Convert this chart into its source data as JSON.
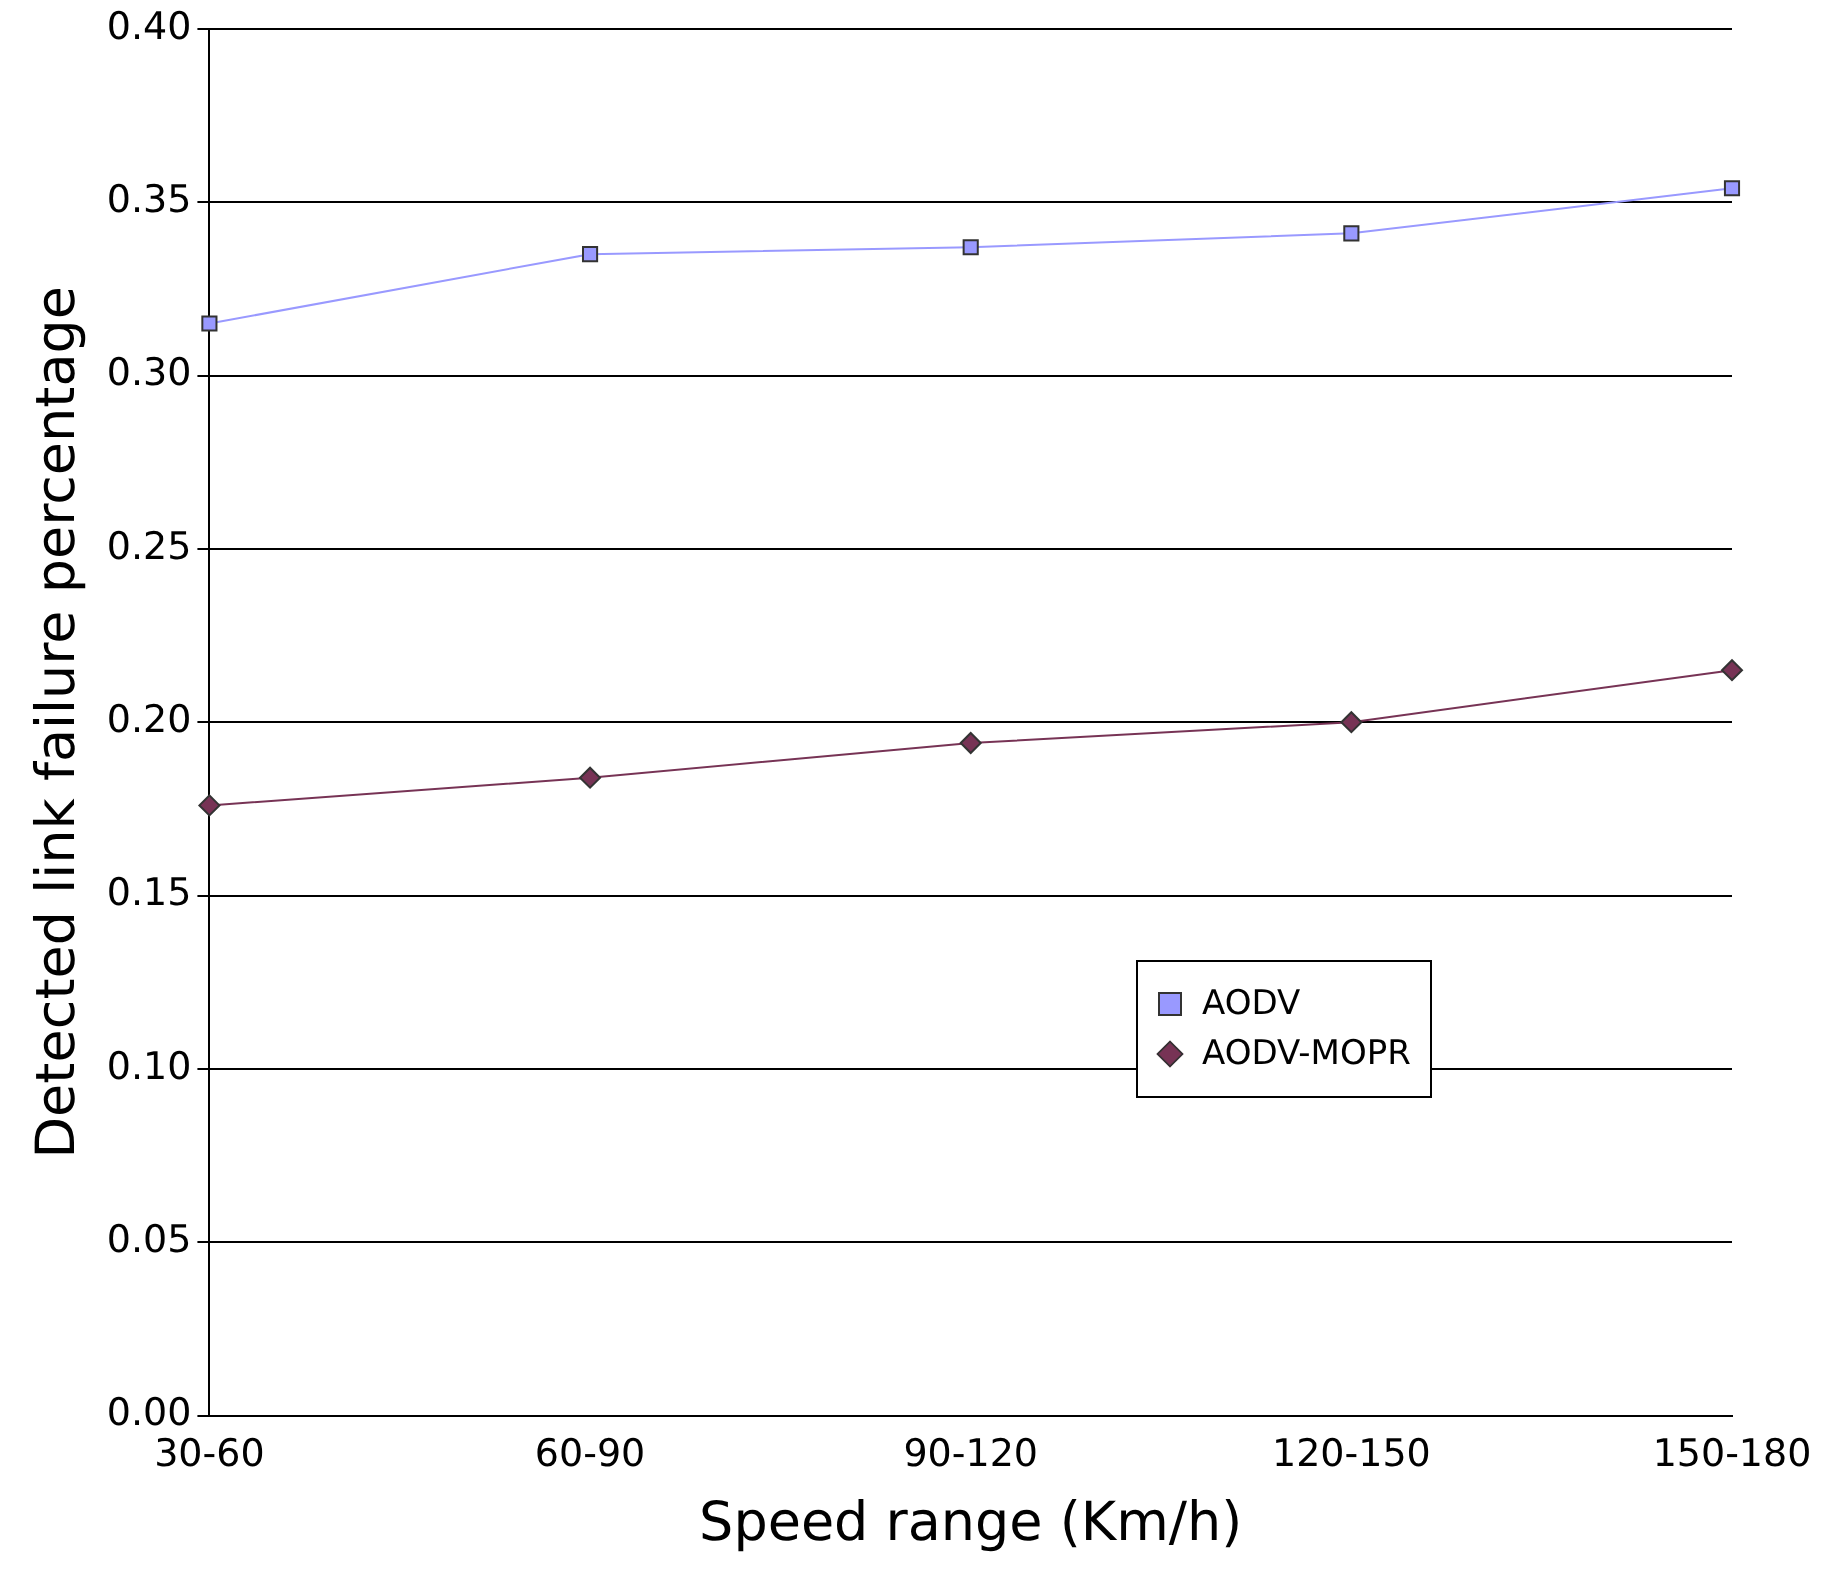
{
  "chart_data": {
    "type": "line",
    "xlabel": "Speed range (Km/h)",
    "ylabel": "Detected link failure percentage",
    "categories": [
      "30-60",
      "60-90",
      "90-120",
      "120-150",
      "150-180"
    ],
    "series": [
      {
        "name": "AODV",
        "color": "#9999ff",
        "marker": "square",
        "values": [
          0.315,
          0.335,
          0.337,
          0.341,
          0.354
        ]
      },
      {
        "name": "AODV-MOPR",
        "color": "#773355",
        "marker": "diamond",
        "values": [
          0.176,
          0.184,
          0.194,
          0.2,
          0.215
        ]
      }
    ],
    "ylim": [
      0,
      0.4
    ],
    "yticks": [
      {
        "value": 0,
        "label": "0.00"
      },
      {
        "value": 0.05,
        "label": "0.05"
      },
      {
        "value": 0.1,
        "label": "0.10"
      },
      {
        "value": 0.15,
        "label": "0.15"
      },
      {
        "value": 0.2,
        "label": "0.20"
      },
      {
        "value": 0.25,
        "label": "0.25"
      },
      {
        "value": 0.3,
        "label": "0.30"
      },
      {
        "value": 0.35,
        "label": "0.35"
      },
      {
        "value": 0.4,
        "label": "0.40"
      }
    ],
    "grid": "y",
    "legend": "bottom right",
    "line_style": "solid"
  }
}
